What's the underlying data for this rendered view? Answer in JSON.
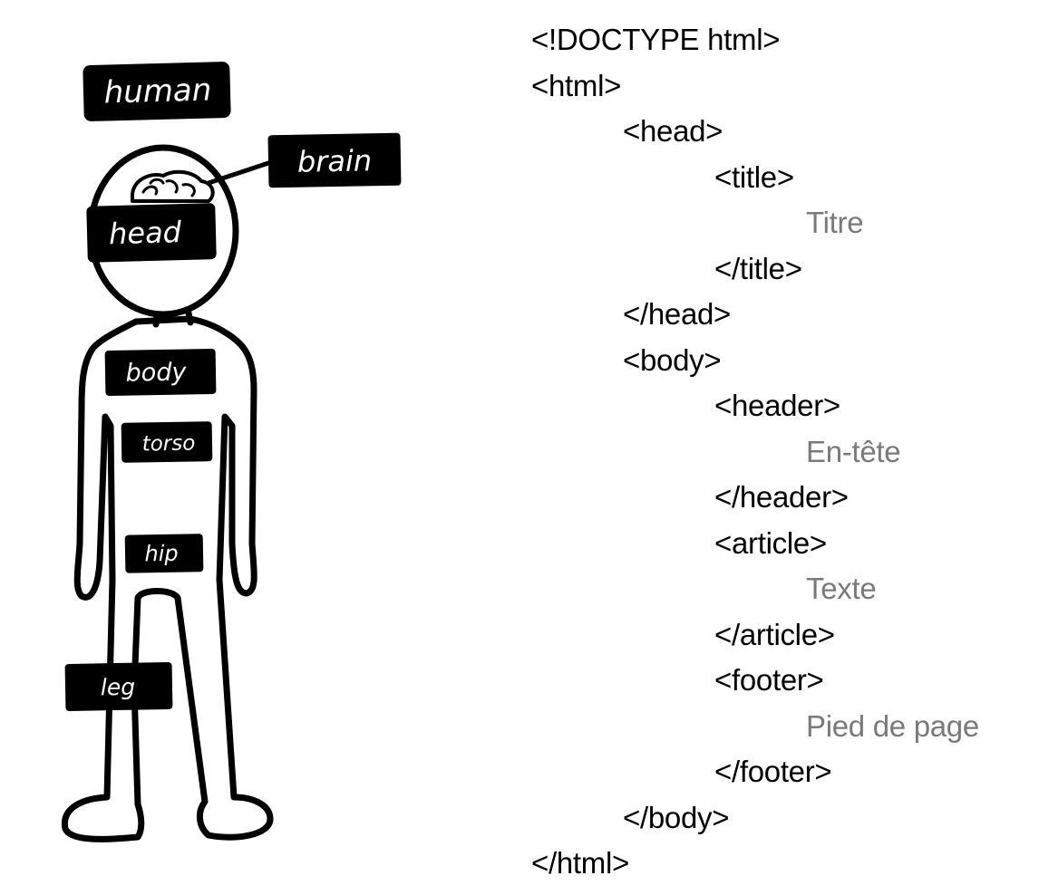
{
  "figure": {
    "labels": {
      "human": "human",
      "brain": "brain",
      "head": "head",
      "body": "body",
      "torso": "torso",
      "hip": "hip",
      "leg": "leg"
    },
    "colors": {
      "label_fill": "#000000",
      "label_text": "#ffffff",
      "outline": "#000000",
      "figure_fill": "#ffffff"
    }
  },
  "code": {
    "colors": {
      "tag": "#000000",
      "content": "#7a7a7a"
    },
    "lines": [
      {
        "text": "<!DOCTYPE html>",
        "indent": 0,
        "kind": "tag"
      },
      {
        "text": "<html>",
        "indent": 0,
        "kind": "tag"
      },
      {
        "text": "<head>",
        "indent": 1,
        "kind": "tag"
      },
      {
        "text": "<title>",
        "indent": 2,
        "kind": "tag"
      },
      {
        "text": "Titre",
        "indent": 3,
        "kind": "content"
      },
      {
        "text": "</title>",
        "indent": 2,
        "kind": "tag"
      },
      {
        "text": "</head>",
        "indent": 1,
        "kind": "tag"
      },
      {
        "text": "<body>",
        "indent": 1,
        "kind": "tag"
      },
      {
        "text": "<header>",
        "indent": 2,
        "kind": "tag"
      },
      {
        "text": "En-tête",
        "indent": 3,
        "kind": "content"
      },
      {
        "text": "</header>",
        "indent": 2,
        "kind": "tag"
      },
      {
        "text": "<article>",
        "indent": 2,
        "kind": "tag"
      },
      {
        "text": "Texte",
        "indent": 3,
        "kind": "content"
      },
      {
        "text": "</article>",
        "indent": 2,
        "kind": "tag"
      },
      {
        "text": "<footer>",
        "indent": 2,
        "kind": "tag"
      },
      {
        "text": "Pied de page",
        "indent": 3,
        "kind": "content"
      },
      {
        "text": "</footer>",
        "indent": 2,
        "kind": "tag"
      },
      {
        "text": "</body>",
        "indent": 1,
        "kind": "tag"
      },
      {
        "text": "</html>",
        "indent": 0,
        "kind": "tag"
      }
    ]
  }
}
